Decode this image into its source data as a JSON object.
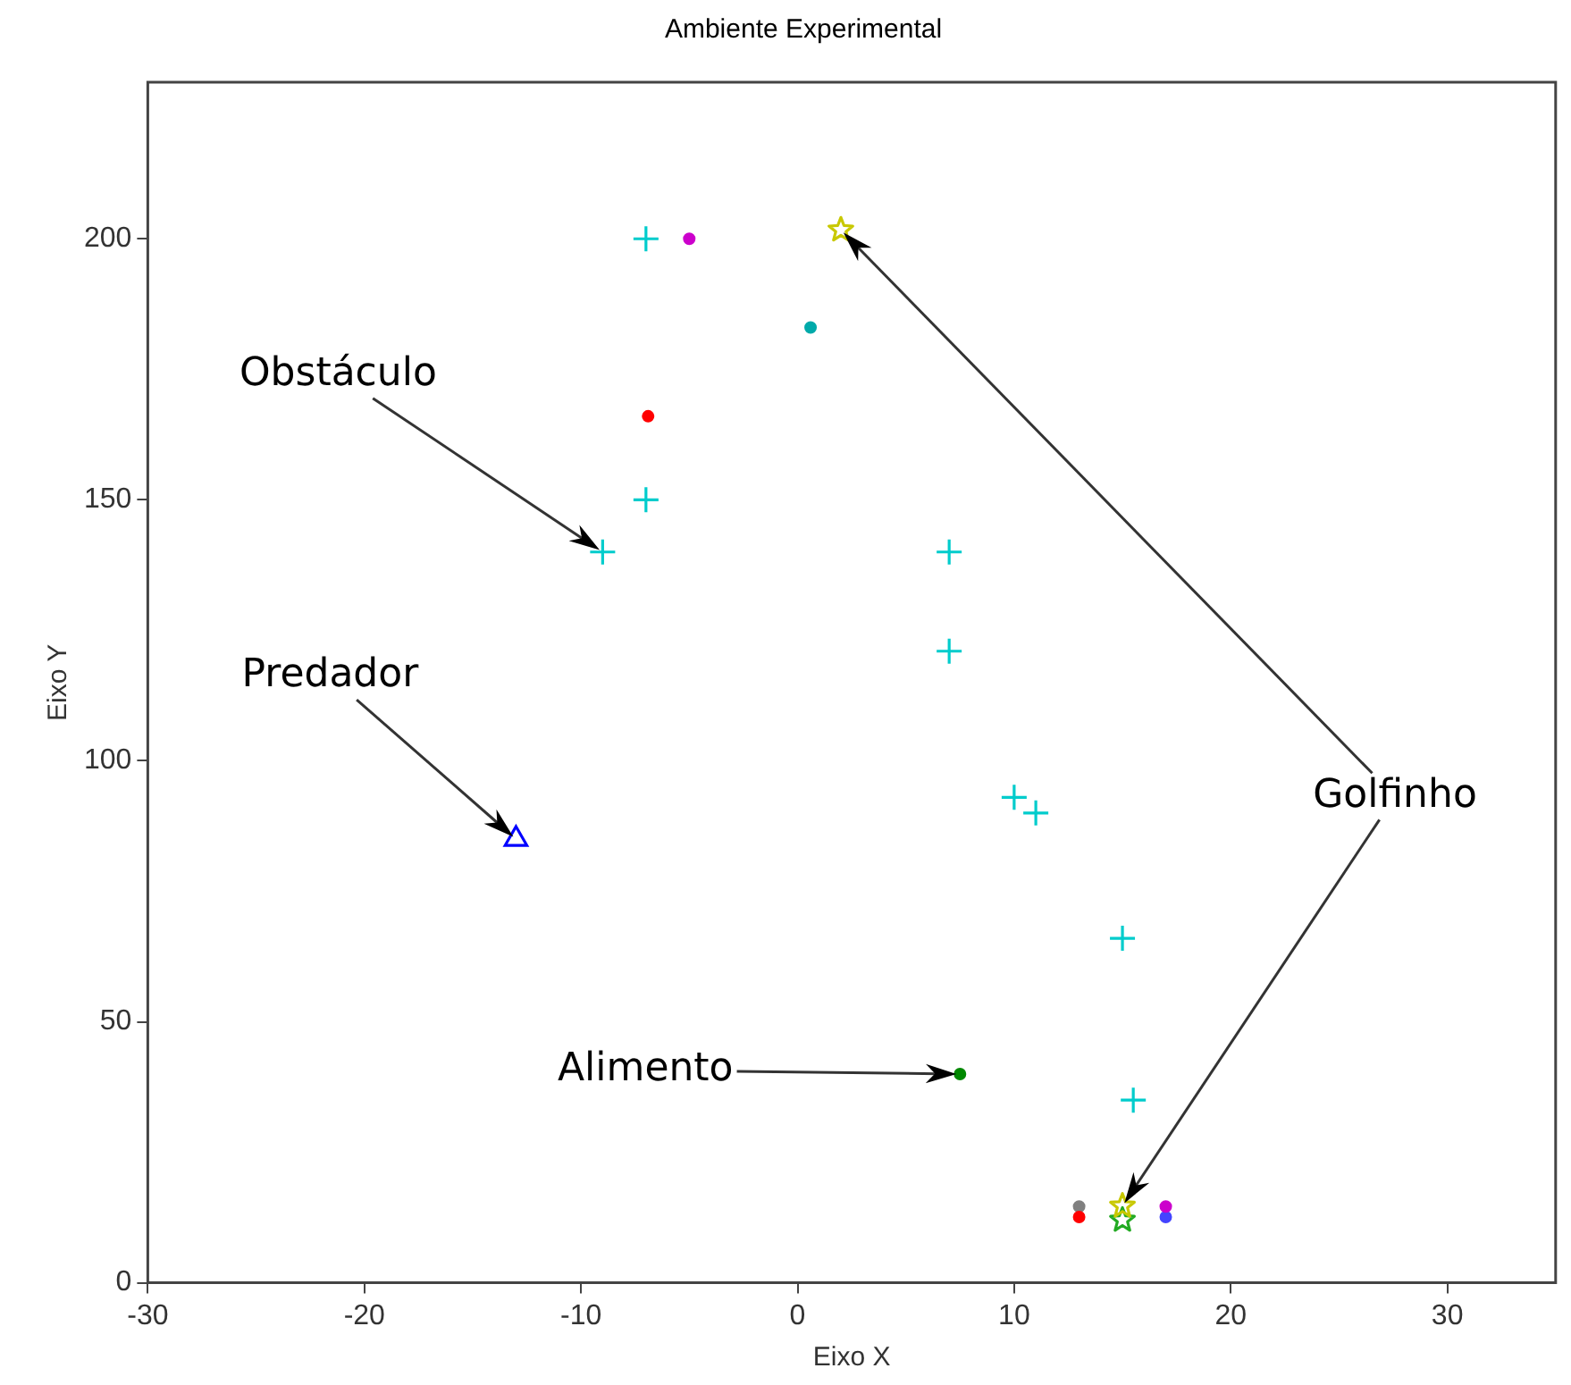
{
  "chart_data": {
    "type": "scatter",
    "title": "Ambiente Experimental",
    "xlabel": "Eixo X",
    "ylabel": "Eixo Y",
    "xlim": [
      -30,
      35
    ],
    "ylim": [
      0,
      230
    ],
    "xticks": [
      -30,
      -20,
      -10,
      0,
      10,
      20,
      30
    ],
    "yticks": [
      0,
      50,
      100,
      150,
      200
    ],
    "grid": false,
    "legend": false,
    "series": [
      {
        "color": "#00cccc",
        "marker": "cross",
        "x": [
          -7,
          -7,
          -9,
          7,
          7,
          10,
          11,
          15,
          15.5
        ],
        "values": [
          200,
          150,
          140,
          140,
          121,
          93,
          90,
          66,
          35
        ]
      },
      {
        "color": "#cc00cc",
        "marker": "circle",
        "x": [
          -5,
          17
        ],
        "values": [
          200,
          14.6
        ]
      },
      {
        "color": "#00aaaa",
        "marker": "circle",
        "x": [
          0.6
        ],
        "values": [
          183
        ]
      },
      {
        "color": "#ff0000",
        "marker": "circle",
        "x": [
          -6.9,
          13
        ],
        "values": [
          166,
          12.6
        ]
      },
      {
        "color": "#008800",
        "marker": "circle",
        "x": [
          7.5
        ],
        "values": [
          40
        ]
      },
      {
        "color": "#808080",
        "marker": "circle",
        "x": [
          13
        ],
        "values": [
          14.6
        ]
      },
      {
        "color": "#4444ff",
        "marker": "circle",
        "x": [
          17
        ],
        "values": [
          12.6
        ]
      },
      {
        "color": "#0000ff",
        "marker": "triangle",
        "x": [
          -13
        ],
        "values": [
          85
        ]
      },
      {
        "color": "#22aa22",
        "marker": "star",
        "x": [
          15
        ],
        "values": [
          12
        ]
      },
      {
        "color": "#c8c800",
        "marker": "star",
        "x": [
          2,
          15
        ],
        "values": [
          201.7,
          14.7
        ]
      }
    ],
    "annotations": [
      "Obstáculo",
      "Predador",
      "Alimento",
      "Golfinho"
    ]
  }
}
